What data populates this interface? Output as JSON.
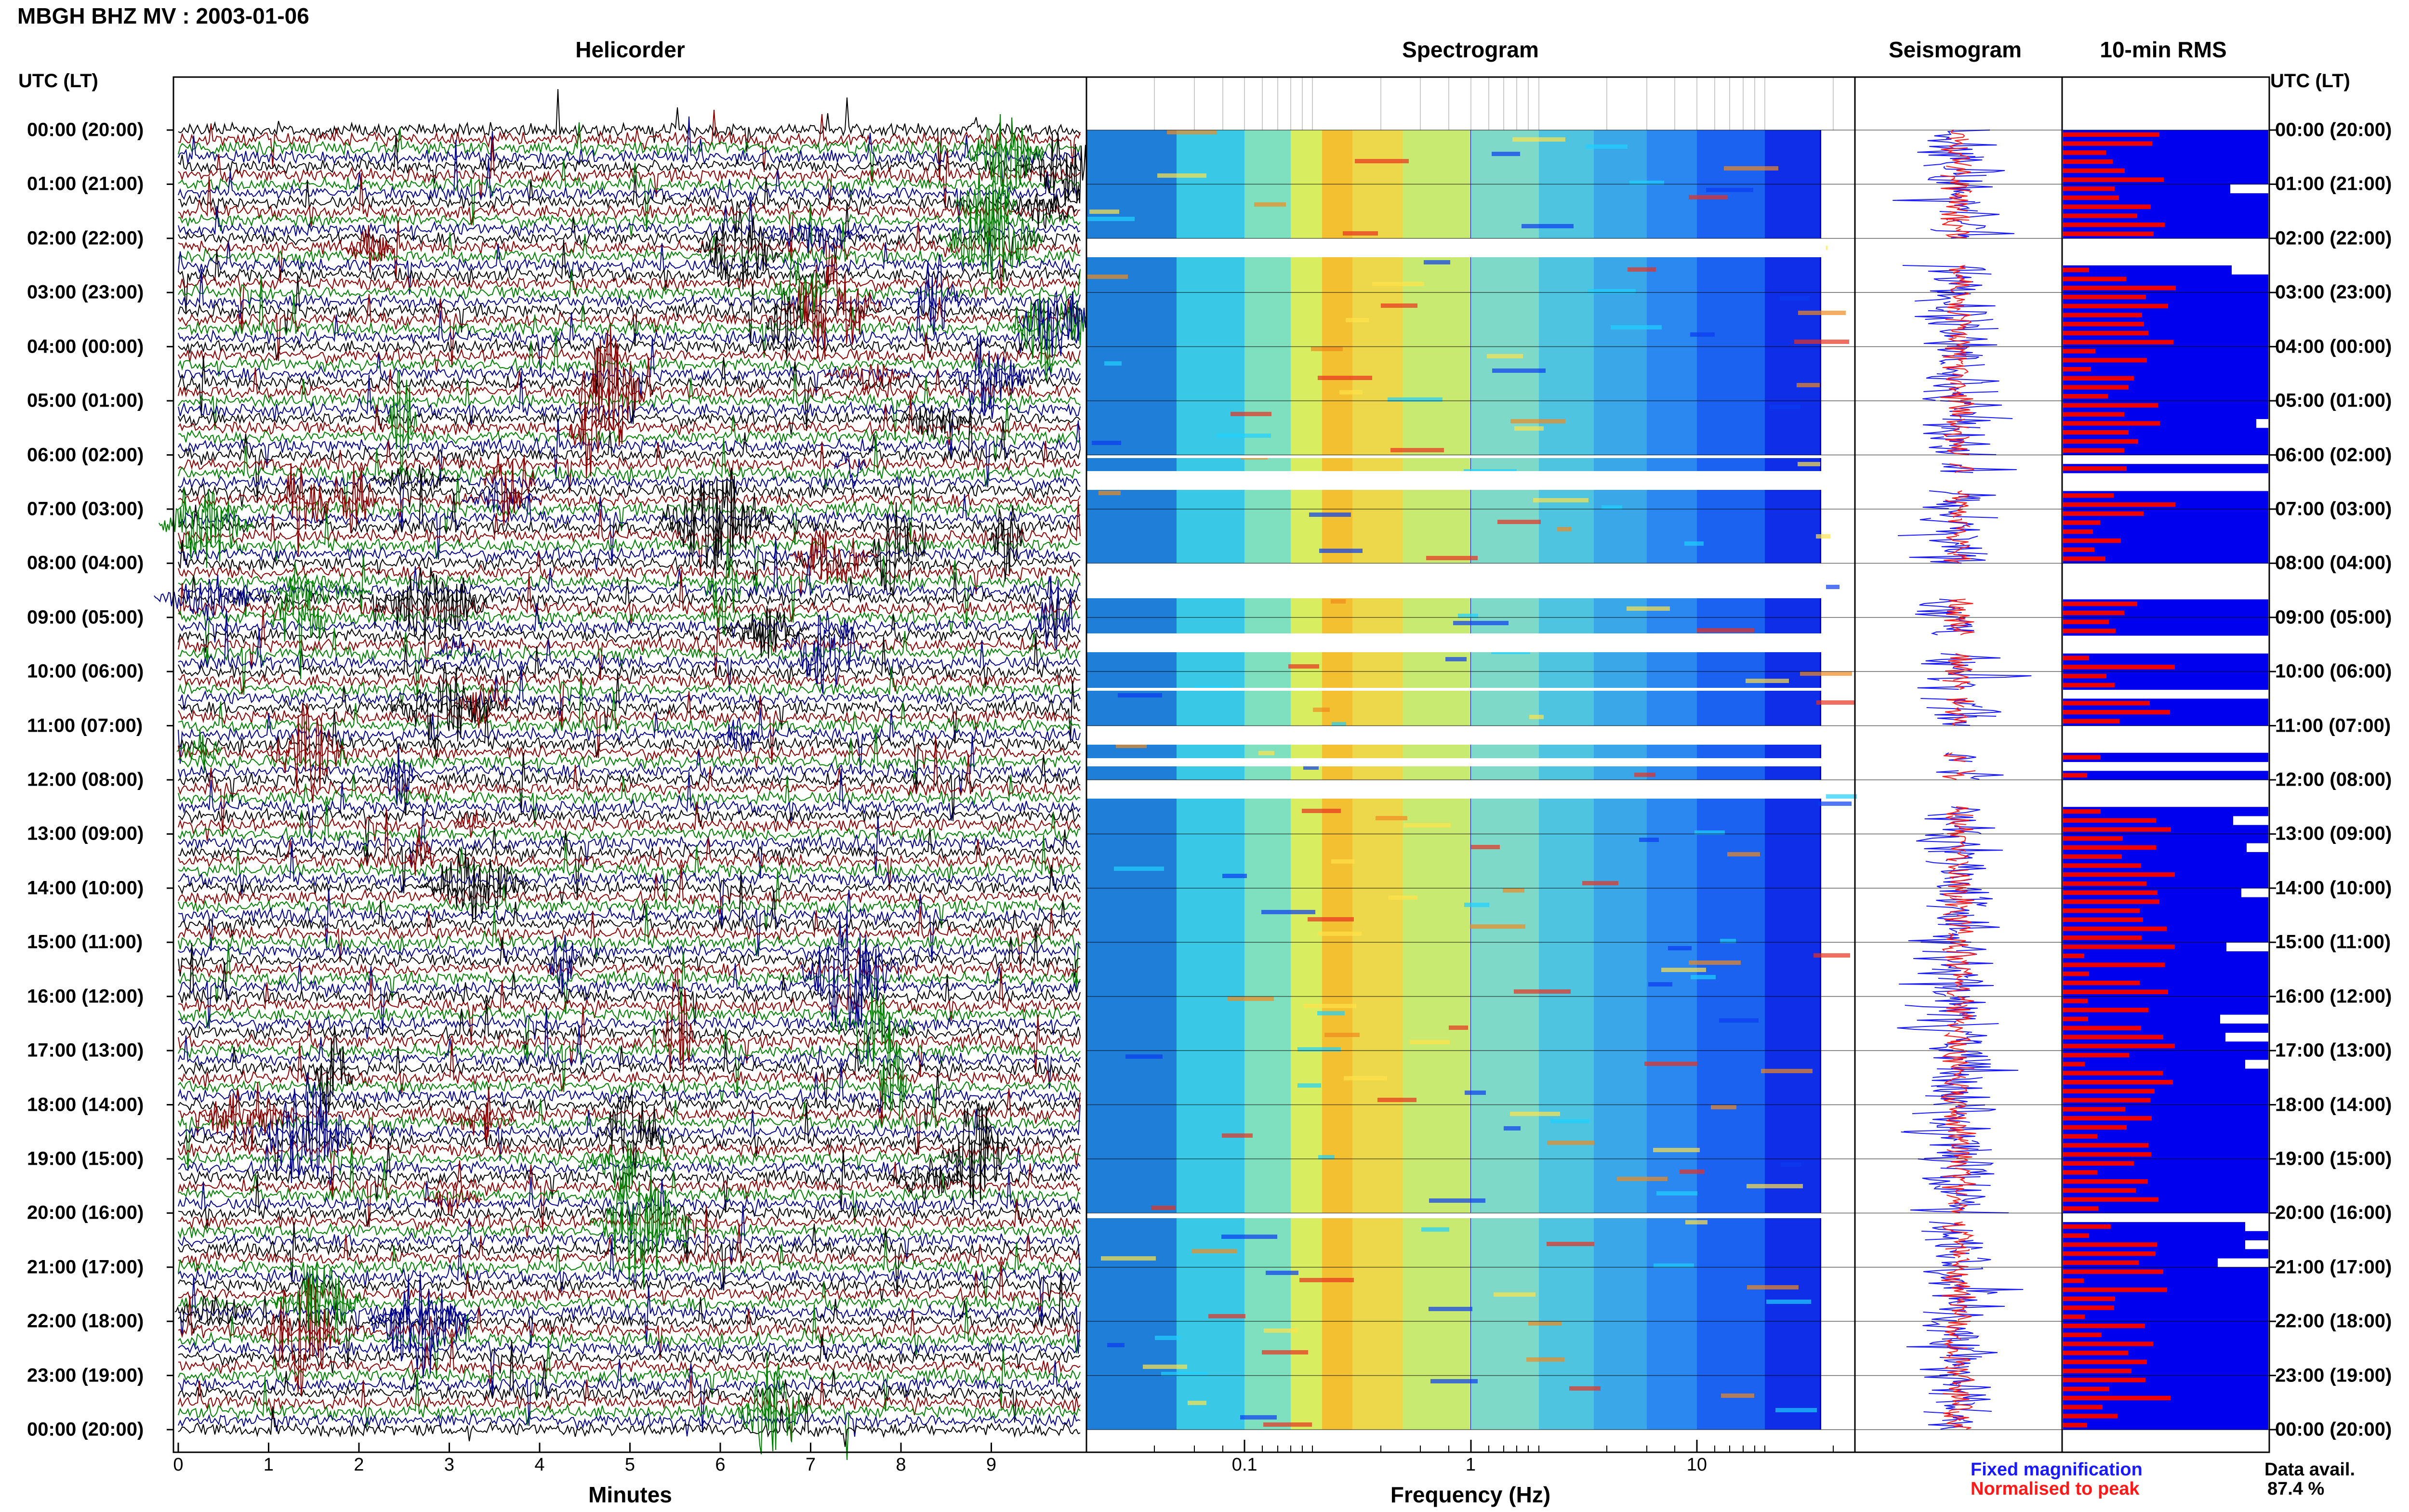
{
  "title": "MBGH BHZ MV : 2003-01-06",
  "panels": {
    "helicorder": "Helicorder",
    "spectrogram": "Spectrogram",
    "seismogram": "Seismogram",
    "rms": "10-min RMS"
  },
  "timezone_header": "UTC (LT)",
  "time_labels": [
    "00:00 (20:00)",
    "01:00 (21:00)",
    "02:00 (22:00)",
    "03:00 (23:00)",
    "04:00 (00:00)",
    "05:00 (01:00)",
    "06:00 (02:00)",
    "07:00 (03:00)",
    "08:00 (04:00)",
    "09:00 (05:00)",
    "10:00 (06:00)",
    "11:00 (07:00)",
    "12:00 (08:00)",
    "13:00 (09:00)",
    "14:00 (10:00)",
    "15:00 (11:00)",
    "16:00 (12:00)",
    "17:00 (13:00)",
    "18:00 (14:00)",
    "19:00 (15:00)",
    "20:00 (16:00)",
    "21:00 (17:00)",
    "22:00 (18:00)",
    "23:00 (19:00)",
    "00:00 (20:00)"
  ],
  "legend": {
    "fixed": "Fixed magnification",
    "normalised": "Normalised to peak",
    "fixed_color": "#1a1aff",
    "normalised_color": "#ff1a1a",
    "avail_label": "Data avail.",
    "avail_value": "87.4 %"
  },
  "colors": {
    "trace_colors": [
      "#000000",
      "#8b0000",
      "#008000",
      "#00008b"
    ],
    "spectrogram_base": "#0000d0",
    "rms_fixed": "#0000ee",
    "rms_norm": "#ee0000"
  },
  "chart_data": [
    {
      "type": "line",
      "title": "Helicorder",
      "xlabel": "Minutes",
      "x_ticks": [
        0,
        1,
        2,
        3,
        4,
        5,
        6,
        7,
        8,
        9
      ],
      "xlim": [
        0,
        10
      ],
      "y_categories_hours_utc": [
        "00:00",
        "01:00",
        "02:00",
        "03:00",
        "04:00",
        "05:00",
        "06:00",
        "07:00",
        "08:00",
        "09:00",
        "10:00",
        "11:00",
        "12:00",
        "13:00",
        "14:00",
        "15:00",
        "16:00",
        "17:00",
        "18:00",
        "19:00",
        "20:00",
        "21:00",
        "22:00",
        "23:00",
        "00:00"
      ],
      "lines_per_hour": 6,
      "series_colors_cycle": [
        "black",
        "darkred",
        "green",
        "darkblue"
      ]
    },
    {
      "type": "heatmap",
      "title": "Spectrogram",
      "xlabel": "Frequency (Hz)",
      "x_scale": "log",
      "x_ticks": [
        0.1,
        1,
        10
      ],
      "x_tick_labels": [
        "0.1",
        "1",
        "10"
      ],
      "xlim": [
        0.02,
        50
      ],
      "y_hours": [
        0,
        24
      ],
      "data_gaps_hours": [
        [
          2.0,
          2.35
        ],
        [
          6.0,
          6.05
        ],
        [
          6.3,
          6.65
        ],
        [
          8.0,
          8.65
        ],
        [
          9.3,
          9.65
        ],
        [
          10.3,
          10.35
        ],
        [
          11.0,
          11.35
        ],
        [
          11.6,
          11.75
        ],
        [
          12.0,
          12.35
        ],
        [
          20.0,
          20.1
        ]
      ]
    },
    {
      "type": "line",
      "title": "Seismogram",
      "series": [
        {
          "name": "Fixed magnification"
        },
        {
          "name": "Normalised to peak"
        }
      ]
    },
    {
      "type": "bar",
      "title": "10-min RMS",
      "orientation": "horizontal",
      "bins_per_hour": 6,
      "series": [
        {
          "name": "Fixed magnification",
          "color": "blue"
        },
        {
          "name": "Normalised to peak",
          "color": "red"
        }
      ],
      "data_availability_percent": 87.4
    }
  ]
}
